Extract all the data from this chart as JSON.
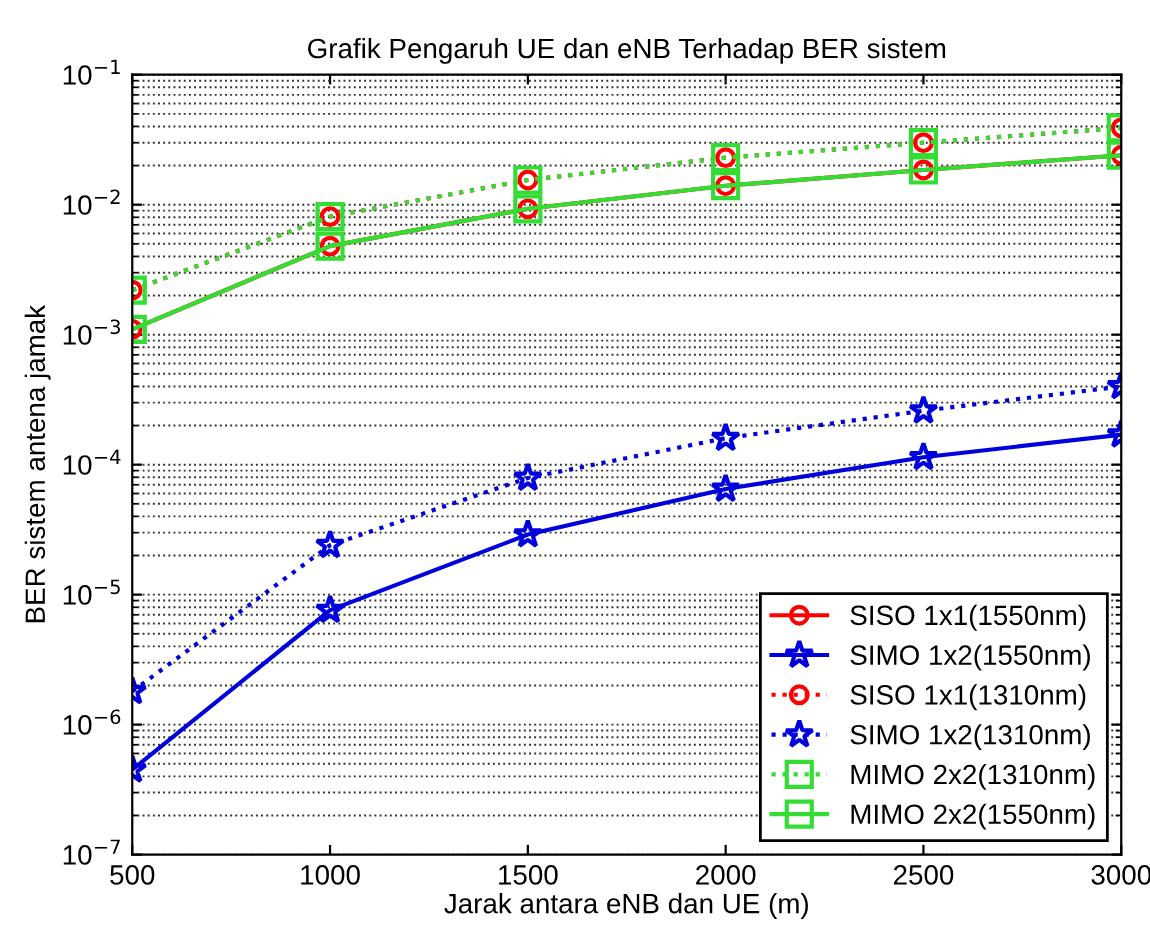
{
  "chart_data": {
    "type": "line",
    "title": "Grafik Pengaruh UE dan eNB Terhadap BER sistem",
    "xlabel": "Jarak antara eNB dan UE (m)",
    "ylabel": "BER sistem antena jamak",
    "x": [
      500,
      1000,
      1500,
      2000,
      2500,
      3000
    ],
    "series": [
      {
        "name": "SISO 1x1(1550nm)",
        "color": "#ff0000",
        "marker": "circle",
        "line_style": "solid",
        "values": [
          0.0011,
          0.0048,
          0.0093,
          0.014,
          0.0185,
          0.024
        ]
      },
      {
        "name": "SIMO 1x2(1550nm)",
        "color": "#0000dd",
        "marker": "star",
        "line_style": "solid",
        "values": [
          4.5e-07,
          7.6e-06,
          2.9e-05,
          6.5e-05,
          0.000114,
          0.00017
        ]
      },
      {
        "name": "SISO 1x1(1310nm)",
        "color": "#ff0000",
        "marker": "circle",
        "line_style": "dotted",
        "values": [
          0.0022,
          0.0081,
          0.0155,
          0.023,
          0.03,
          0.039
        ]
      },
      {
        "name": "SIMO 1x2(1310nm)",
        "color": "#0000dd",
        "marker": "star",
        "line_style": "dotted",
        "values": [
          1.8e-06,
          2.4e-05,
          7.9e-05,
          0.00016,
          0.00026,
          0.0004
        ]
      },
      {
        "name": "MIMO 2x2(1310nm)",
        "color": "#33dd33",
        "marker": "square",
        "line_style": "dotted",
        "values": [
          0.0022,
          0.0081,
          0.0155,
          0.023,
          0.03,
          0.039
        ]
      },
      {
        "name": "MIMO 2x2(1550nm)",
        "color": "#33dd33",
        "marker": "square",
        "line_style": "solid",
        "values": [
          0.0011,
          0.0048,
          0.0093,
          0.014,
          0.0185,
          0.024
        ]
      }
    ],
    "log": "y",
    "xlim": [
      500,
      3000
    ],
    "xticks": [
      500,
      1000,
      1500,
      2000,
      2500,
      3000
    ],
    "ylim": [
      1e-07,
      0.1
    ],
    "yticks": [
      {
        "value": 1e-07,
        "label": "10$^{−7}$"
      },
      {
        "value": 1e-06,
        "label": "10$^{−6}$"
      },
      {
        "value": 1e-05,
        "label": "10$^{−5}$"
      },
      {
        "value": 0.0001,
        "label": "10$^{−4}$"
      },
      {
        "value": 0.001,
        "label": "10$^{−3}$"
      },
      {
        "value": 0.01,
        "label": "10$^{−2}$"
      },
      {
        "value": 0.1,
        "label": "10$^{−1}$"
      }
    ],
    "grid": "y",
    "legend": "bottom right"
  }
}
